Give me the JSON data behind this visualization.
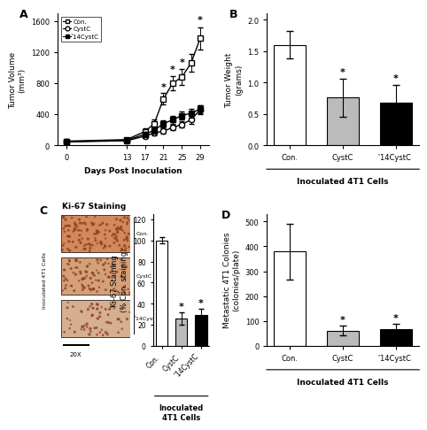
{
  "panel_A": {
    "days": [
      0,
      13,
      17,
      19,
      21,
      23,
      25,
      27,
      29
    ],
    "con_mean": [
      55,
      75,
      180,
      280,
      600,
      800,
      880,
      1060,
      1380
    ],
    "con_err": [
      18,
      25,
      45,
      55,
      75,
      90,
      100,
      115,
      145
    ],
    "cystc_mean": [
      45,
      60,
      120,
      160,
      185,
      230,
      270,
      330,
      460
    ],
    "cystc_err": [
      12,
      18,
      28,
      35,
      30,
      35,
      40,
      50,
      55
    ],
    "d14_mean": [
      50,
      65,
      145,
      195,
      280,
      330,
      385,
      415,
      470
    ],
    "d14_err": [
      12,
      18,
      32,
      42,
      48,
      50,
      55,
      60,
      52
    ],
    "star_days": [
      21,
      23,
      25,
      29
    ],
    "star_vals": [
      700,
      920,
      1010,
      1560
    ],
    "xlabel": "Days Post Inoculation",
    "ylabel": "Tumor Volume\n(mm³)",
    "ylim": [
      0,
      1700
    ],
    "yticks": [
      0,
      400,
      800,
      1200,
      1600
    ],
    "xticks": [
      0,
      13,
      17,
      21,
      25,
      29
    ]
  },
  "panel_B": {
    "categories": [
      "Con.",
      "CystC",
      "̔14CystC"
    ],
    "means": [
      1.6,
      0.76,
      0.68
    ],
    "errors": [
      0.22,
      0.3,
      0.28
    ],
    "colors": [
      "white",
      "#bbbbbb",
      "black"
    ],
    "stars": [
      false,
      true,
      true
    ],
    "ylabel": "Tumor Weight\n(grams)",
    "xlabel": "Inoculated 4T1 Cells",
    "ylim": [
      0,
      2.1
    ],
    "yticks": [
      0.0,
      0.5,
      1.0,
      1.5,
      2.0
    ]
  },
  "panel_C_bar": {
    "categories": [
      "Con.",
      "CystC",
      "̔14CystC"
    ],
    "means": [
      100,
      26,
      29
    ],
    "errors": [
      3,
      6,
      6
    ],
    "colors": [
      "white",
      "#bbbbbb",
      "black"
    ],
    "stars": [
      false,
      true,
      true
    ],
    "ylabel": "Ki-67 Staining\n(% Con. staining)",
    "xlabel": "Inoculated\n4T1 Cells",
    "ylim": [
      0,
      125
    ],
    "yticks": [
      0,
      20,
      40,
      60,
      80,
      100,
      120
    ]
  },
  "panel_D": {
    "categories": [
      "Con.",
      "CystC",
      "̔14CystC"
    ],
    "means": [
      380,
      62,
      68
    ],
    "errors": [
      112,
      18,
      20
    ],
    "colors": [
      "white",
      "#bbbbbb",
      "black"
    ],
    "stars": [
      false,
      true,
      true
    ],
    "ylabel": "Metastatic 4T1 Colonies\n(colonies/plate)",
    "xlabel": "Inoculated 4T1 Cells",
    "ylim": [
      0,
      530
    ],
    "yticks": [
      0,
      100,
      200,
      300,
      400,
      500
    ]
  },
  "label_fontsize": 6.5,
  "tick_fontsize": 6,
  "panel_label_fontsize": 9,
  "star_fontsize": 8,
  "delta_char": "Δ"
}
